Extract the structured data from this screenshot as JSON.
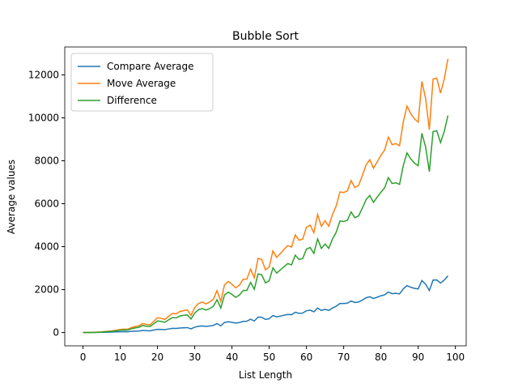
{
  "chart_data": {
    "type": "line",
    "title": "Bubble Sort",
    "xlabel": "List Length",
    "ylabel": "Average values",
    "x": [
      0,
      1,
      2,
      3,
      4,
      5,
      6,
      7,
      8,
      9,
      10,
      11,
      12,
      13,
      14,
      15,
      16,
      17,
      18,
      19,
      20,
      21,
      22,
      23,
      24,
      25,
      26,
      27,
      28,
      29,
      30,
      31,
      32,
      33,
      34,
      35,
      36,
      37,
      38,
      39,
      40,
      41,
      42,
      43,
      44,
      45,
      46,
      47,
      48,
      49,
      50,
      51,
      52,
      53,
      54,
      55,
      56,
      57,
      58,
      59,
      60,
      61,
      62,
      63,
      64,
      65,
      66,
      67,
      68,
      69,
      70,
      71,
      72,
      73,
      74,
      75,
      76,
      77,
      78,
      79,
      80,
      81,
      82,
      83,
      84,
      85,
      86,
      87,
      88,
      89,
      90,
      91,
      92,
      93,
      94,
      95,
      96,
      97,
      98
    ],
    "series": [
      {
        "name": "Compare Average",
        "color": "#1f77b4",
        "values": [
          0,
          0,
          2,
          4,
          6,
          10,
          14,
          18,
          25,
          30,
          35,
          40,
          35,
          55,
          65,
          70,
          95,
          85,
          80,
          115,
          150,
          145,
          135,
          165,
          195,
          190,
          210,
          220,
          230,
          170,
          250,
          290,
          305,
          285,
          305,
          330,
          420,
          310,
          470,
          500,
          475,
          440,
          465,
          520,
          525,
          620,
          535,
          720,
          710,
          610,
          640,
          790,
          730,
          765,
          810,
          840,
          830,
          945,
          895,
          905,
          1015,
          1040,
          965,
          1140,
          1030,
          1080,
          1030,
          1140,
          1225,
          1355,
          1350,
          1370,
          1465,
          1400,
          1420,
          1510,
          1615,
          1665,
          1585,
          1645,
          1710,
          1760,
          1885,
          1810,
          1825,
          1800,
          2030,
          2185,
          2110,
          2060,
          2030,
          2420,
          2255,
          1955,
          2440,
          2450,
          2305,
          2440,
          2640
        ]
      },
      {
        "name": "Move Average",
        "color": "#ff7f0e",
        "values": [
          0,
          0,
          4,
          10,
          20,
          30,
          50,
          65,
          85,
          110,
          140,
          160,
          150,
          230,
          280,
          310,
          420,
          380,
          360,
          520,
          690,
          660,
          610,
          760,
          890,
          870,
          980,
          1020,
          1050,
          800,
          1160,
          1350,
          1420,
          1330,
          1420,
          1550,
          1950,
          1450,
          2220,
          2380,
          2250,
          2080,
          2210,
          2480,
          2490,
          2950,
          2550,
          3450,
          3400,
          2920,
          3050,
          3800,
          3500,
          3680,
          3880,
          4050,
          3980,
          4550,
          4300,
          4350,
          4900,
          5000,
          4650,
          5500,
          4950,
          5200,
          4950,
          5500,
          5900,
          6550,
          6520,
          6600,
          7080,
          6750,
          6850,
          7300,
          7800,
          8050,
          7650,
          7950,
          8250,
          8500,
          9100,
          8750,
          8800,
          8700,
          9800,
          10550,
          10200,
          9950,
          9800,
          11700,
          10900,
          9450,
          11800,
          11850,
          11150,
          11800,
          12750
        ]
      },
      {
        "name": "Difference",
        "color": "#2ca02c",
        "values": [
          0,
          0,
          2,
          6,
          14,
          20,
          36,
          47,
          60,
          80,
          105,
          120,
          115,
          175,
          215,
          240,
          325,
          295,
          280,
          405,
          540,
          515,
          475,
          595,
          695,
          680,
          770,
          800,
          820,
          630,
          910,
          1060,
          1115,
          1045,
          1115,
          1220,
          1530,
          1140,
          1750,
          1880,
          1775,
          1640,
          1745,
          1960,
          1965,
          2330,
          2015,
          2730,
          2690,
          2310,
          2410,
          3010,
          2770,
          2915,
          3070,
          3210,
          3150,
          3605,
          3405,
          3445,
          3885,
          3960,
          3685,
          4360,
          3920,
          4120,
          3920,
          4360,
          4675,
          5195,
          5170,
          5230,
          5615,
          5350,
          5430,
          5790,
          6185,
          6385,
          6065,
          6305,
          6540,
          6740,
          7215,
          6940,
          6975,
          6900,
          7770,
          8365,
          8090,
          7890,
          7770,
          9280,
          8645,
          7495,
          9360,
          9400,
          8845,
          9360,
          10110
        ]
      }
    ],
    "xlim": [
      -4.9,
      102.9
    ],
    "ylim": [
      -620,
      13300
    ],
    "xticks": [
      0,
      10,
      20,
      30,
      40,
      50,
      60,
      70,
      80,
      90,
      100
    ],
    "yticks": [
      0,
      2000,
      4000,
      6000,
      8000,
      10000,
      12000
    ],
    "legend": "upper left",
    "grid": false
  }
}
